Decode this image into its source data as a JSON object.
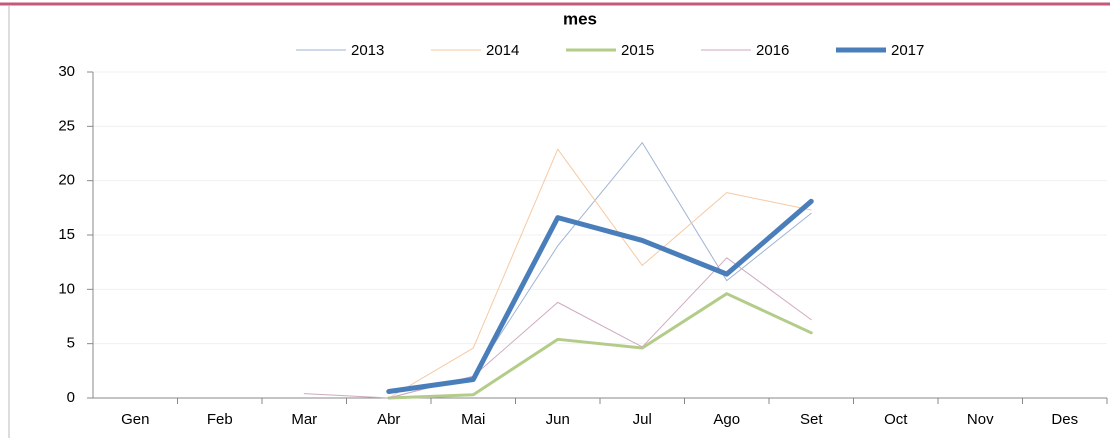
{
  "chart_data": {
    "type": "line",
    "title": "mes",
    "categories": [
      "Gen",
      "Feb",
      "Mar",
      "Abr",
      "Mai",
      "Jun",
      "Jul",
      "Ago",
      "Set",
      "Oct",
      "Nov",
      "Des"
    ],
    "series": [
      {
        "name": "2013",
        "color": "#9fb3d3",
        "line_width": 1,
        "values": [
          null,
          null,
          null,
          0,
          2,
          14,
          23.5,
          10.8,
          17,
          null,
          null,
          null
        ]
      },
      {
        "name": "2014",
        "color": "#f6c9a2",
        "line_width": 1,
        "values": [
          null,
          null,
          null,
          0,
          4.6,
          22.9,
          12.2,
          18.9,
          17.3,
          null,
          null,
          null
        ]
      },
      {
        "name": "2015",
        "color": "#b3cc8a",
        "line_width": 3,
        "values": [
          null,
          null,
          null,
          0,
          0.3,
          5.4,
          4.6,
          9.6,
          6,
          null,
          null,
          null
        ]
      },
      {
        "name": "2016",
        "color": "#cfa9bf",
        "line_width": 1,
        "values": [
          null,
          null,
          0.4,
          0,
          2,
          8.8,
          4.7,
          12.9,
          7.2,
          null,
          null,
          null
        ]
      },
      {
        "name": "2017",
        "color": "#4a7ebb",
        "line_width": 5,
        "values": [
          null,
          null,
          null,
          0.6,
          1.7,
          16.6,
          14.5,
          11.4,
          18.1,
          null,
          null,
          null
        ]
      }
    ],
    "ylim": [
      0,
      30
    ],
    "yticks": [
      0,
      5,
      10,
      15,
      20,
      25,
      30
    ],
    "grid": true,
    "legend": "top"
  }
}
